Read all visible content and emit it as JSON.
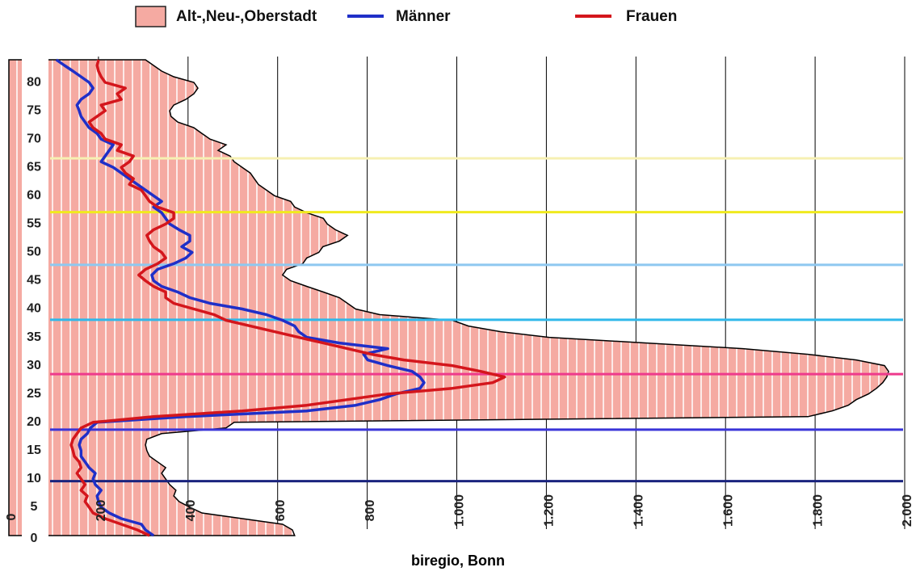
{
  "chart_data": {
    "type": "line",
    "orientation": "horizontal",
    "source": "biregio, Bonn",
    "area": {
      "name": "Alt-,Neu-,Oberstadt",
      "color": "#f5aaa2",
      "values": [
        638,
        633,
        611,
        521,
        431,
        404,
        380,
        368,
        373,
        359,
        350,
        341,
        350,
        332,
        314,
        308,
        305,
        308,
        341,
        485,
        503,
        1784,
        1838,
        1874,
        1892,
        1919,
        1937,
        1951,
        1960,
        1964,
        1955,
        1892,
        1784,
        1639,
        1423,
        1206,
        1098,
        1026,
        990,
        828,
        774,
        756,
        738,
        702,
        665,
        629,
        611,
        620,
        656,
        665,
        692,
        701,
        738,
        756,
        729,
        711,
        702,
        665,
        638,
        629,
        593,
        575,
        557,
        548,
        539,
        521,
        503,
        494,
        467,
        485,
        449,
        431,
        413,
        377,
        362,
        359,
        368,
        395,
        413,
        422,
        413,
        368,
        341,
        323,
        305
      ]
    },
    "y": [
      0,
      1,
      2,
      3,
      4,
      5,
      6,
      7,
      8,
      9,
      10,
      11,
      12,
      13,
      14,
      15,
      16,
      17,
      18,
      19,
      20,
      21,
      22,
      23,
      24,
      25,
      26,
      27,
      28,
      29,
      30,
      31,
      32,
      33,
      34,
      35,
      36,
      37,
      38,
      39,
      40,
      41,
      42,
      43,
      44,
      45,
      46,
      47,
      48,
      49,
      50,
      51,
      52,
      53,
      54,
      55,
      56,
      57,
      58,
      59,
      60,
      61,
      62,
      63,
      64,
      65,
      66,
      67,
      68,
      69,
      70,
      71,
      72,
      73,
      74,
      75,
      76,
      77,
      78,
      79,
      80,
      81,
      82,
      83,
      84
    ],
    "series": [
      {
        "name": "Männer",
        "color": "#1f2fc8",
        "values": [
          323,
          305,
          296,
          251,
          224,
          206,
          200,
          197,
          206,
          193,
          188,
          193,
          179,
          170,
          161,
          161,
          157,
          161,
          175,
          182,
          197,
          395,
          665,
          774,
          828,
          864,
          918,
          927,
          918,
          900,
          846,
          801,
          792,
          846,
          738,
          665,
          647,
          638,
          611,
          575,
          521,
          449,
          404,
          377,
          341,
          323,
          319,
          332,
          368,
          395,
          409,
          386,
          404,
          404,
          380,
          359,
          350,
          341,
          323,
          341,
          323,
          305,
          287,
          269,
          251,
          233,
          206,
          215,
          224,
          233,
          206,
          197,
          179,
          170,
          161,
          157,
          152,
          161,
          179,
          188,
          179,
          161,
          143,
          124,
          106
        ]
      },
      {
        "name": "Frauen",
        "color": "#d4161c",
        "values": [
          314,
          287,
          251,
          215,
          188,
          179,
          170,
          175,
          161,
          170,
          161,
          152,
          161,
          157,
          146,
          143,
          139,
          143,
          152,
          161,
          188,
          323,
          521,
          665,
          756,
          846,
          990,
          1080,
          1107,
          1053,
          990,
          882,
          810,
          756,
          702,
          647,
          593,
          539,
          485,
          458,
          413,
          368,
          350,
          350,
          323,
          305,
          290,
          305,
          332,
          350,
          341,
          323,
          314,
          308,
          323,
          350,
          368,
          368,
          332,
          314,
          305,
          296,
          269,
          278,
          260,
          251,
          269,
          278,
          242,
          251,
          215,
          206,
          188,
          179,
          197,
          215,
          206,
          251,
          242,
          260,
          215,
          206,
          200,
          197,
          200
        ]
      }
    ],
    "reference_lines": [
      {
        "value": 9.6,
        "color": "#1a237e"
      },
      {
        "value": 18.7,
        "color": "#3a34d8"
      },
      {
        "value": 28.5,
        "color": "#ee3a8c"
      },
      {
        "value": 38.1,
        "color": "#2fb8ea"
      },
      {
        "value": 47.8,
        "color": "#8ec8f0"
      },
      {
        "value": 57.1,
        "color": "#f0ea1e"
      },
      {
        "value": 66.6,
        "color": "#f6f0b2"
      }
    ],
    "xlim": [
      0,
      2000
    ],
    "xticks": [
      0,
      200,
      400,
      600,
      800,
      {
        "value": 1000,
        "label": "1.000"
      },
      {
        "value": 1200,
        "label": "1.200"
      },
      {
        "value": 1400,
        "label": "1.400"
      },
      {
        "value": 1600,
        "label": "1.600"
      },
      {
        "value": 1800,
        "label": "1.800"
      },
      {
        "value": 2000,
        "label": "2.000"
      }
    ],
    "ylim": [
      0,
      84
    ],
    "yticks": [
      0,
      5,
      10,
      15,
      20,
      25,
      30,
      35,
      40,
      45,
      50,
      55,
      60,
      65,
      70,
      75,
      80
    ],
    "grid": true
  }
}
